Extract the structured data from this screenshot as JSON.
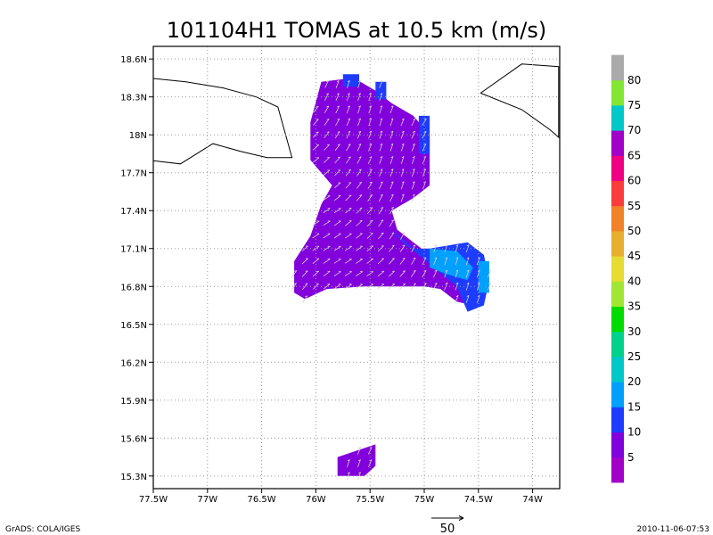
{
  "chart_data": {
    "type": "heatmap",
    "title": "101104H1 TOMAS at 10.5 km (m/s)",
    "xlim": [
      -77.5,
      -73.75
    ],
    "ylim": [
      15.2,
      18.7
    ],
    "x_ticks": [
      -77.5,
      -77,
      -76.5,
      -76,
      -75.5,
      -75,
      -74.5,
      -74
    ],
    "x_tick_labels": [
      "77.5W",
      "77W",
      "76.5W",
      "76W",
      "75.5W",
      "75W",
      "74.5W",
      "74W"
    ],
    "y_ticks": [
      15.3,
      15.6,
      15.9,
      16.2,
      16.5,
      16.8,
      17.1,
      17.4,
      17.7,
      18,
      18.3,
      18.6
    ],
    "y_tick_labels": [
      "15.3N",
      "15.6N",
      "15.9N",
      "16.2N",
      "16.5N",
      "16.8N",
      "17.1N",
      "17.4N",
      "17.7N",
      "18N",
      "18.3N",
      "18.6N"
    ],
    "grid": true,
    "colorbar": {
      "levels": [
        5,
        10,
        15,
        20,
        25,
        30,
        35,
        40,
        45,
        50,
        55,
        60,
        65,
        70,
        75,
        80
      ],
      "colors": [
        "#a000c8",
        "#8200dc",
        "#1e3cff",
        "#00a0ff",
        "#00c8c8",
        "#00d28c",
        "#00dc00",
        "#a0e632",
        "#e6dc32",
        "#e6af2d",
        "#f08228",
        "#fa3c3c",
        "#f00082",
        "#a000c8",
        "#00c8c8",
        "#82e632",
        "#aaaaaa"
      ]
    },
    "wind_regions": [
      {
        "level": "5-10",
        "polygon": [
          [
            -75.95,
            18.42
          ],
          [
            -75.65,
            18.45
          ],
          [
            -75.45,
            18.35
          ],
          [
            -75.3,
            18.25
          ],
          [
            -75.1,
            18.15
          ],
          [
            -74.95,
            18.0
          ],
          [
            -74.95,
            17.6
          ],
          [
            -75.1,
            17.5
          ],
          [
            -75.3,
            17.4
          ],
          [
            -75.25,
            17.25
          ],
          [
            -75.1,
            17.15
          ],
          [
            -74.95,
            17.05
          ],
          [
            -74.7,
            17.05
          ],
          [
            -74.55,
            16.9
          ],
          [
            -74.55,
            16.65
          ],
          [
            -74.7,
            16.68
          ],
          [
            -74.85,
            16.78
          ],
          [
            -75.0,
            16.8
          ],
          [
            -75.25,
            16.8
          ],
          [
            -75.55,
            16.8
          ],
          [
            -75.9,
            16.78
          ],
          [
            -76.1,
            16.7
          ],
          [
            -76.2,
            16.75
          ],
          [
            -76.2,
            17.0
          ],
          [
            -76.05,
            17.2
          ],
          [
            -75.95,
            17.45
          ],
          [
            -75.85,
            17.6
          ],
          [
            -76.05,
            17.8
          ],
          [
            -76.05,
            18.1
          ]
        ]
      },
      {
        "level": "5-10",
        "polygon": [
          [
            -75.8,
            15.45
          ],
          [
            -75.45,
            15.55
          ],
          [
            -75.45,
            15.38
          ],
          [
            -75.55,
            15.3
          ],
          [
            -75.8,
            15.3
          ]
        ]
      },
      {
        "level": "10-15",
        "polygon": [
          [
            -75.75,
            18.48
          ],
          [
            -75.6,
            18.48
          ],
          [
            -75.6,
            18.38
          ],
          [
            -75.75,
            18.38
          ]
        ]
      },
      {
        "level": "10-15",
        "polygon": [
          [
            -75.45,
            18.42
          ],
          [
            -75.35,
            18.42
          ],
          [
            -75.35,
            18.28
          ],
          [
            -75.45,
            18.28
          ]
        ]
      },
      {
        "level": "10-15",
        "polygon": [
          [
            -75.05,
            18.15
          ],
          [
            -74.95,
            18.15
          ],
          [
            -74.95,
            17.85
          ],
          [
            -75.05,
            17.85
          ]
        ]
      },
      {
        "level": "10-15",
        "polygon": [
          [
            -75.3,
            17.25
          ],
          [
            -75.1,
            17.1
          ],
          [
            -74.95,
            17.1
          ],
          [
            -74.6,
            17.15
          ],
          [
            -74.45,
            17.05
          ],
          [
            -74.4,
            16.85
          ],
          [
            -74.45,
            16.65
          ],
          [
            -74.6,
            16.6
          ],
          [
            -74.7,
            16.8
          ],
          [
            -75.05,
            17.05
          ],
          [
            -75.2,
            17.15
          ]
        ]
      },
      {
        "level": "15-20",
        "polygon": [
          [
            -74.95,
            17.1
          ],
          [
            -74.7,
            17.08
          ],
          [
            -74.55,
            16.95
          ],
          [
            -74.6,
            16.85
          ],
          [
            -74.8,
            16.9
          ],
          [
            -74.95,
            16.95
          ]
        ]
      },
      {
        "level": "15-20",
        "polygon": [
          [
            -74.5,
            17.0
          ],
          [
            -74.4,
            17.0
          ],
          [
            -74.4,
            16.75
          ],
          [
            -74.5,
            16.75
          ]
        ]
      }
    ],
    "annotations": [
      {
        "text": "GrADS: COLA/IGES"
      },
      {
        "text": "2010-11-06-07:53"
      },
      {
        "text": "50"
      }
    ]
  }
}
